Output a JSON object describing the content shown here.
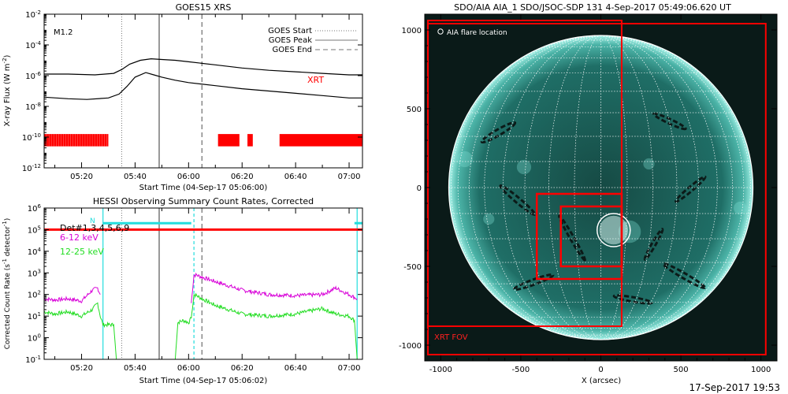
{
  "colors": {
    "xrt": "#ff0000",
    "magenta": "#d800d8",
    "green": "#22dd22",
    "cyan": "#22dddd",
    "gray": "#888888",
    "black": "#000000",
    "sun_bg": "#0a1a18",
    "sun_disk": "#1f6e66",
    "sun_limb": "#7de2d6"
  },
  "footer_timestamp": "17-Sep-2017 19:53",
  "chart_data": [
    {
      "type": "line",
      "title": "GOES15 XRS",
      "ylabel": "X-ray Flux (W m$^{-2}$)",
      "xlabel": "Start Time (04-Sep-17 05:06:00)",
      "y_scale": "log",
      "ylim": [
        1e-12,
        0.01
      ],
      "xlim_minutes": [
        6,
        125
      ],
      "x_ticks": [
        {
          "m": 20,
          "label": "05:20"
        },
        {
          "m": 40,
          "label": "05:40"
        },
        {
          "m": 60,
          "label": "06:00"
        },
        {
          "m": 80,
          "label": "06:20"
        },
        {
          "m": 100,
          "label": "06:40"
        },
        {
          "m": 120,
          "label": "07:00"
        }
      ],
      "y_ticks": [
        {
          "exp": -2,
          "label": "10$^{-2}$"
        },
        {
          "exp": -4,
          "label": "10$^{-4}$"
        },
        {
          "exp": -6,
          "label": "10$^{-6}$"
        },
        {
          "exp": -8,
          "label": "10$^{-8}$"
        },
        {
          "exp": -10,
          "label": "10$^{-10}$"
        },
        {
          "exp": -12,
          "label": "10$^{-12}$"
        }
      ],
      "flare_class": "M1.2",
      "legend": [
        {
          "label": "GOES Start",
          "style": "dotted"
        },
        {
          "label": "GOES Peak",
          "style": "solid"
        },
        {
          "label": "GOES End",
          "style": "dashed"
        }
      ],
      "xrt_label": "XRT",
      "markers_minutes": {
        "start": 35,
        "peak": 49,
        "end": 65
      },
      "series": [
        {
          "name": "long",
          "x": [
            6,
            15,
            25,
            32,
            35,
            38,
            42,
            46,
            50,
            55,
            60,
            70,
            80,
            90,
            100,
            110,
            120,
            125
          ],
          "log_values": [
            -5.9,
            -5.9,
            -5.95,
            -5.85,
            -5.6,
            -5.25,
            -5.0,
            -4.9,
            -4.95,
            -5.0,
            -5.1,
            -5.3,
            -5.5,
            -5.65,
            -5.75,
            -5.85,
            -5.95,
            -5.95
          ]
        },
        {
          "name": "short",
          "x": [
            6,
            15,
            22,
            30,
            34,
            37,
            40,
            44,
            47,
            50,
            55,
            60,
            70,
            80,
            90,
            100,
            110,
            120,
            125
          ],
          "log_values": [
            -7.4,
            -7.5,
            -7.55,
            -7.45,
            -7.2,
            -6.7,
            -6.1,
            -5.8,
            -5.95,
            -6.1,
            -6.3,
            -6.45,
            -6.65,
            -6.85,
            -7.0,
            -7.15,
            -7.3,
            -7.45,
            -7.45
          ]
        }
      ],
      "xrt_coverage_minutes": [
        [
          6,
          30
        ],
        [
          71,
          79
        ],
        [
          82,
          84
        ],
        [
          94,
          125
        ]
      ]
    },
    {
      "type": "line",
      "title": "HESSI Observing Summary Count Rates, Corrected",
      "ylabel": "Corrected Count Rate (s$^{-1}$ detector$^{-1}$)",
      "xlabel": "Start Time (04-Sep-17 05:06:02)",
      "y_scale": "log",
      "ylim": [
        0.1,
        1000000
      ],
      "xlim_minutes": [
        6,
        125
      ],
      "x_ticks": [
        {
          "m": 20,
          "label": "05:20"
        },
        {
          "m": 40,
          "label": "05:40"
        },
        {
          "m": 60,
          "label": "06:00"
        },
        {
          "m": 80,
          "label": "06:20"
        },
        {
          "m": 100,
          "label": "06:40"
        },
        {
          "m": 120,
          "label": "07:00"
        }
      ],
      "y_ticks": [
        {
          "exp": 6,
          "label": "10$^{6}$"
        },
        {
          "exp": 5,
          "label": "10$^{5}$"
        },
        {
          "exp": 4,
          "label": "10$^{4}$"
        },
        {
          "exp": 3,
          "label": "10$^{3}$"
        },
        {
          "exp": 2,
          "label": "10$^{2}$"
        },
        {
          "exp": 1,
          "label": "10$^{1}$"
        },
        {
          "exp": 0,
          "label": "10$^{0}$"
        },
        {
          "exp": -1,
          "label": "10$^{-1}$"
        }
      ],
      "legend": [
        {
          "label": "Det#1,3,4,5,6,9",
          "color": "black"
        },
        {
          "label": "6-12 keV",
          "color": "magenta"
        },
        {
          "label": "12-25 keV",
          "color": "green"
        }
      ],
      "legend_tag": "N",
      "markers_minutes": {
        "start": 35,
        "peak": 49,
        "end": 65
      },
      "cyan_markers_minutes": [
        28,
        62,
        123
      ],
      "series": [
        {
          "name": "6-12 keV",
          "color": "magenta",
          "segments": [
            {
              "x": [
                6,
                10,
                15,
                20,
                24,
                26,
                27
              ],
              "log_values": [
                1.8,
                1.75,
                1.8,
                1.7,
                2.2,
                2.3,
                2.0
              ]
            },
            {
              "x": [
                61,
                62,
                63,
                65,
                70,
                75,
                80,
                90,
                100,
                110,
                115,
                120,
                123
              ],
              "log_values": [
                1.6,
                2.9,
                2.9,
                2.8,
                2.6,
                2.4,
                2.2,
                2.0,
                1.95,
                2.0,
                2.3,
                2.0,
                1.8
              ]
            }
          ]
        },
        {
          "name": "12-25 keV",
          "color": "green",
          "segments": [
            {
              "x": [
                6,
                10,
                15,
                20,
                24,
                26,
                27,
                28,
                30,
                32,
                33
              ],
              "log_values": [
                1.2,
                1.1,
                1.2,
                1.0,
                1.3,
                1.6,
                1.0,
                0.6,
                0.6,
                0.6,
                -1.0
              ]
            },
            {
              "x": [
                55,
                56,
                58,
                60,
                61
              ],
              "log_values": [
                -1.0,
                0.7,
                0.8,
                0.7,
                0.9
              ]
            },
            {
              "x": [
                61,
                62,
                63,
                65,
                70,
                75,
                80,
                90,
                100,
                110,
                115,
                120,
                122,
                123
              ],
              "log_values": [
                0.9,
                2.0,
                1.95,
                1.8,
                1.5,
                1.3,
                1.1,
                1.0,
                1.1,
                1.35,
                1.1,
                1.0,
                0.8,
                -1.0
              ]
            }
          ]
        },
        {
          "name": "Det#1,3,4,5,6,9",
          "color": "xrt",
          "segments": [
            {
              "x": [
                6,
                125
              ],
              "log_values": [
                5.0,
                5.0
              ]
            }
          ]
        },
        {
          "name": "N",
          "color": "cyan",
          "segments": [
            {
              "x": [
                28,
                61
              ],
              "log_values": [
                5.3,
                5.3
              ]
            },
            {
              "x": [
                122,
                125
              ],
              "log_values": [
                5.3,
                5.3
              ]
            }
          ]
        }
      ]
    },
    {
      "type": "scatter",
      "title": "SDO/AIA AIA_1 SDO/JSOC-SDP 131   4-Sep-2017 05:49:06.620 UT",
      "xlabel": "X (arcsec)",
      "ylabel": "",
      "xlim": [
        -1100,
        1100
      ],
      "ylim": [
        -1100,
        1100
      ],
      "x_ticks": [
        -1000,
        -500,
        0,
        500,
        1000
      ],
      "y_ticks": [
        -1000,
        -500,
        0,
        500,
        1000
      ],
      "solar_radius_arcsec": 950,
      "legend": [
        {
          "label": "AIA flare location",
          "marker": "circle"
        }
      ],
      "flare_location": {
        "x": 80,
        "y": -270,
        "r": 90
      },
      "xrt_fov_label": "XRT FOV",
      "xrt_boxes": [
        {
          "x0": -1080,
          "y0": -880,
          "x1": 130,
          "y1": 1060
        },
        {
          "x0": -1080,
          "y0": -1060,
          "x1": 1030,
          "y1": 1040
        },
        {
          "x0": -400,
          "y0": -580,
          "x1": 130,
          "y1": -40
        },
        {
          "x0": -250,
          "y0": -500,
          "x1": 130,
          "y1": -120
        }
      ]
    }
  ]
}
